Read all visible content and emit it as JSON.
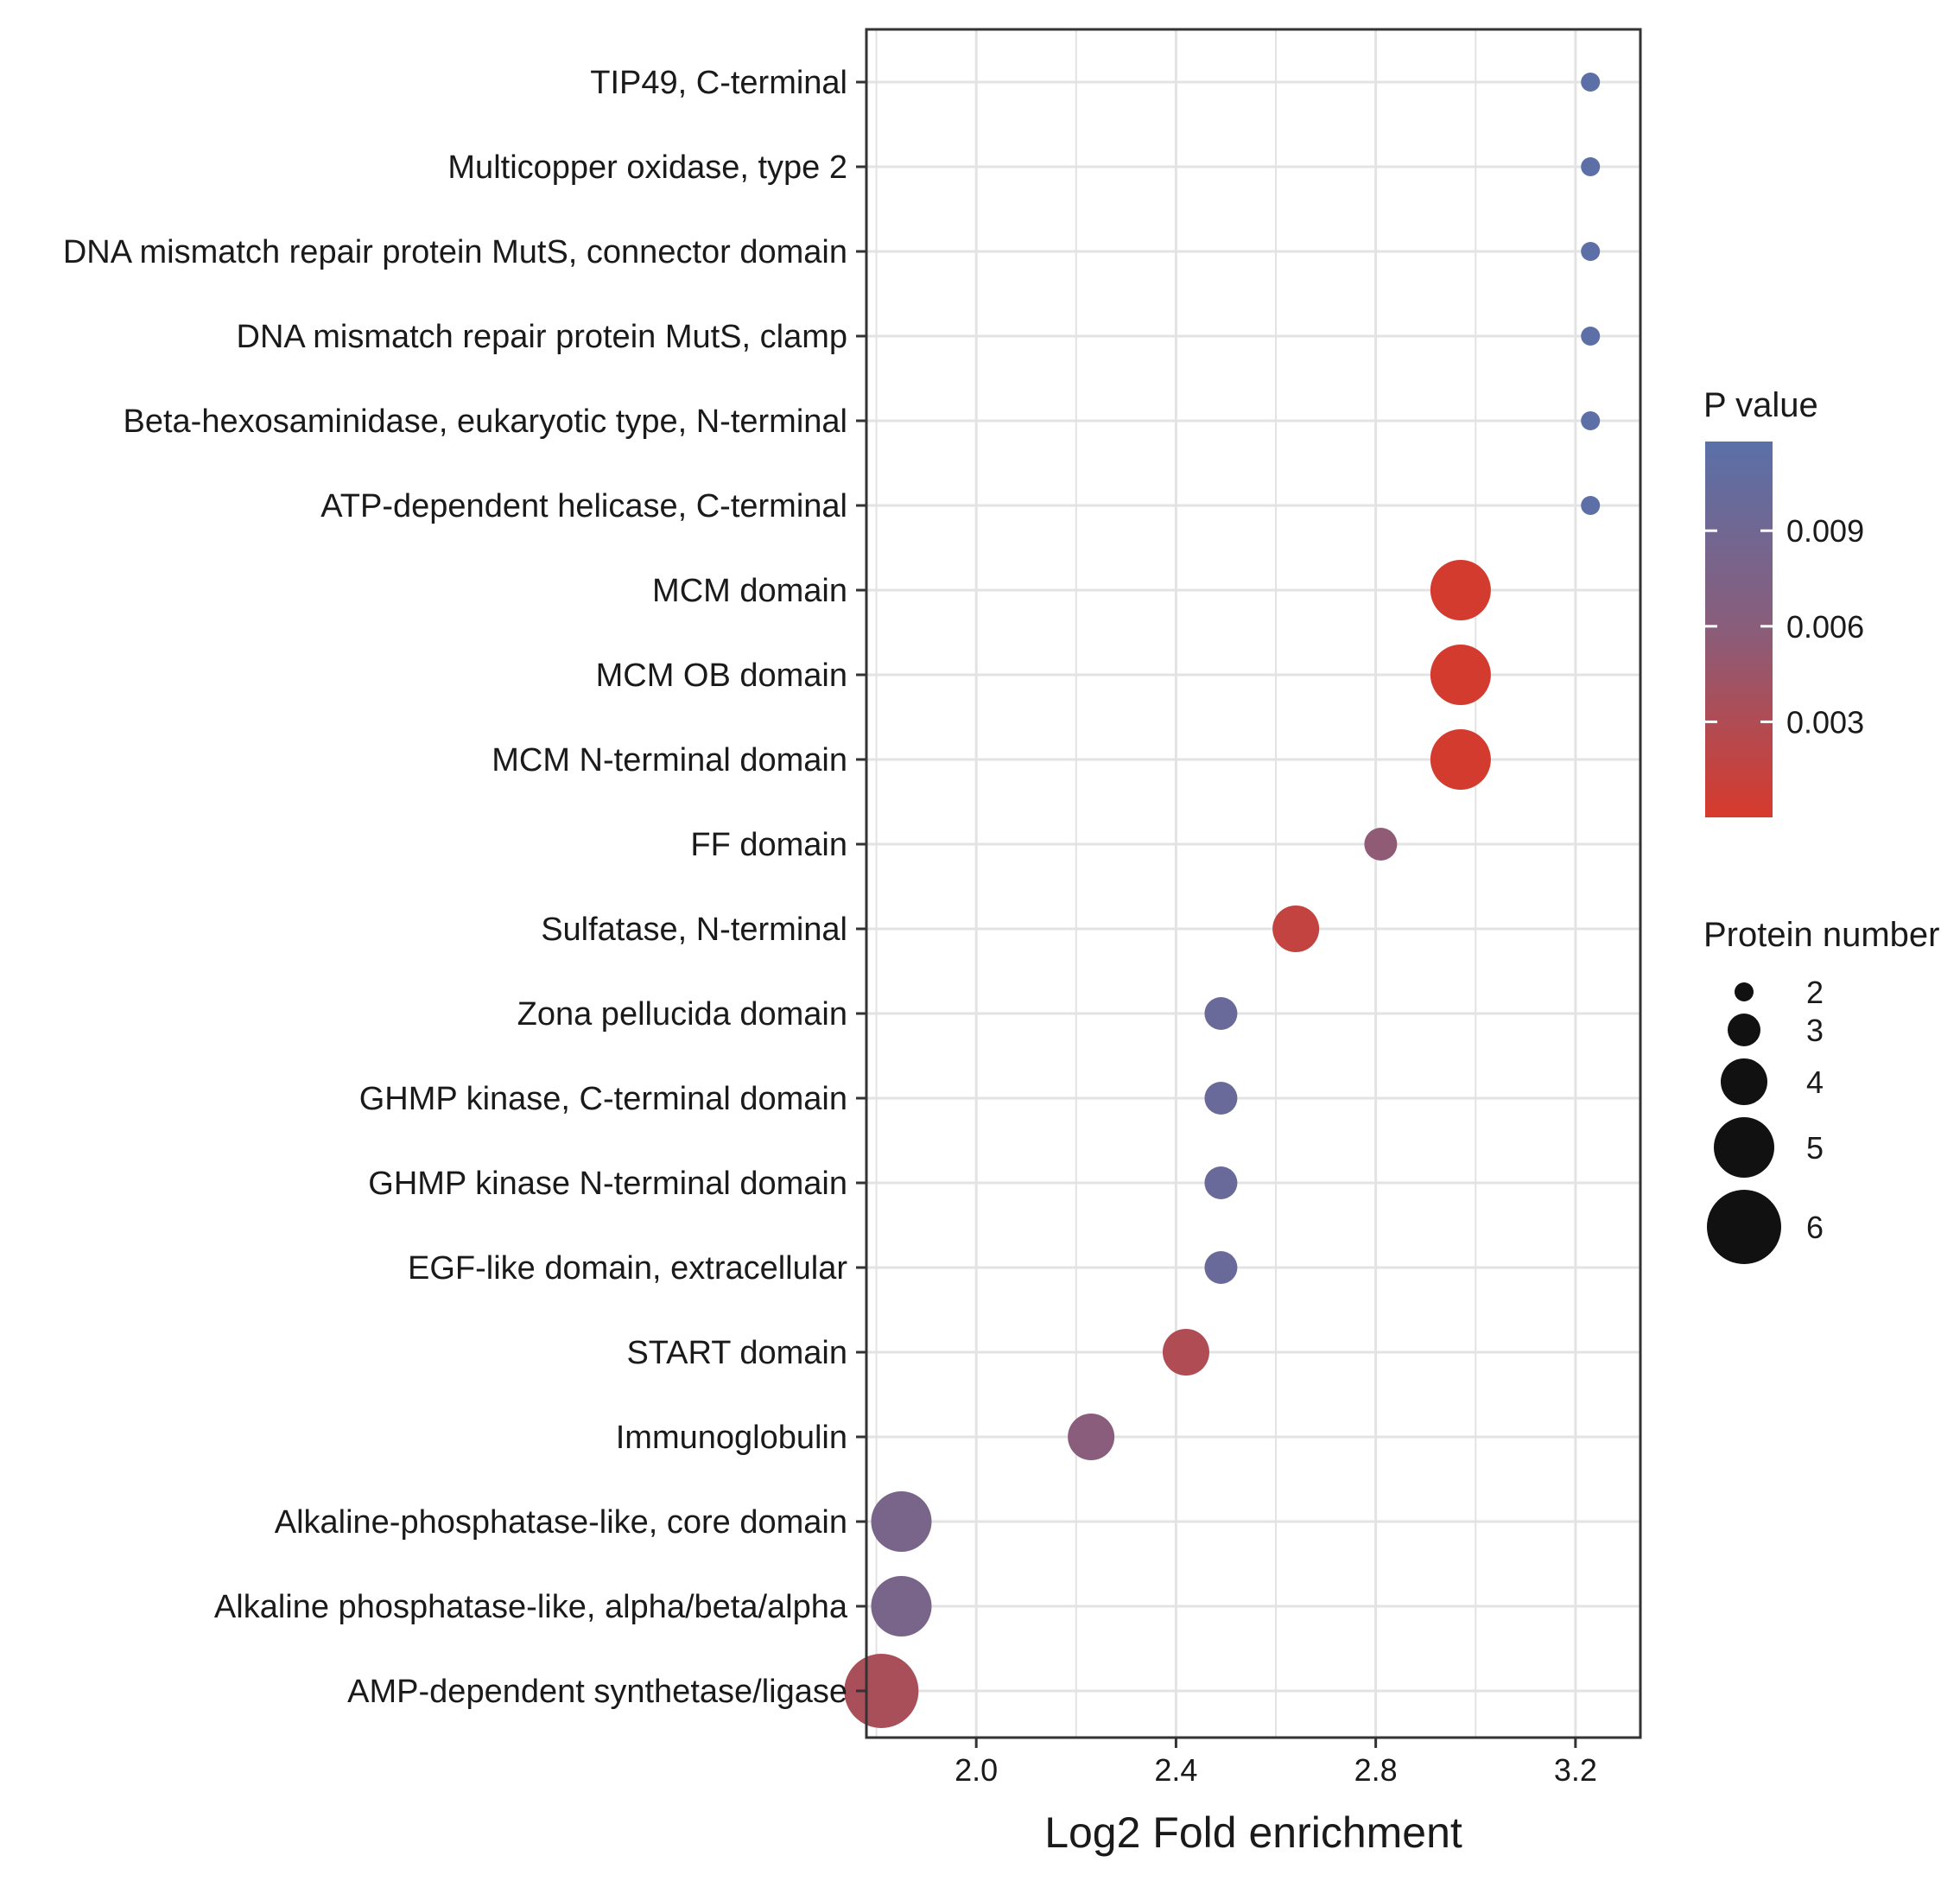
{
  "chart_data": {
    "type": "scatter",
    "title": "",
    "xlabel": "Log2 Fold enrichment",
    "ylabel": "",
    "xlim": [
      1.78,
      3.33
    ],
    "xticks": [
      2.0,
      2.4,
      2.8,
      3.2
    ],
    "xtick_labels": [
      "2.0",
      "2.4",
      "2.8",
      "3.2"
    ],
    "grid": true,
    "categories": [
      "TIP49, C-terminal",
      "Multicopper oxidase, type 2",
      "DNA mismatch repair protein MutS, connector domain",
      "DNA mismatch repair protein MutS, clamp",
      "Beta-hexosaminidase, eukaryotic type, N-terminal",
      "ATP-dependent helicase, C-terminal",
      "MCM domain",
      "MCM OB domain",
      "MCM N-terminal domain",
      "FF domain",
      "Sulfatase, N-terminal",
      "Zona pellucida domain",
      "GHMP kinase, C-terminal domain",
      "GHMP kinase N-terminal domain",
      "EGF-like domain, extracellular",
      "START domain",
      "Immunoglobulin",
      "Alkaline-phosphatase-like, core domain",
      "Alkaline phosphatase-like, alpha/beta/alpha",
      "AMP-dependent synthetase/ligase"
    ],
    "points": [
      {
        "category": "TIP49, C-terminal",
        "x": 3.23,
        "p_value": 0.0115,
        "protein_number": 2
      },
      {
        "category": "Multicopper oxidase, type 2",
        "x": 3.23,
        "p_value": 0.0115,
        "protein_number": 2
      },
      {
        "category": "DNA mismatch repair protein MutS, connector domain",
        "x": 3.23,
        "p_value": 0.0115,
        "protein_number": 2
      },
      {
        "category": "DNA mismatch repair protein MutS, clamp",
        "x": 3.23,
        "p_value": 0.0115,
        "protein_number": 2
      },
      {
        "category": "Beta-hexosaminidase, eukaryotic type, N-terminal",
        "x": 3.23,
        "p_value": 0.0115,
        "protein_number": 2
      },
      {
        "category": "ATP-dependent helicase, C-terminal",
        "x": 3.23,
        "p_value": 0.0115,
        "protein_number": 2
      },
      {
        "category": "MCM domain",
        "x": 2.97,
        "p_value": 0.0002,
        "protein_number": 5
      },
      {
        "category": "MCM OB domain",
        "x": 2.97,
        "p_value": 0.0002,
        "protein_number": 5
      },
      {
        "category": "MCM N-terminal domain",
        "x": 2.97,
        "p_value": 0.0002,
        "protein_number": 5
      },
      {
        "category": "FF domain",
        "x": 2.81,
        "p_value": 0.0055,
        "protein_number": 3
      },
      {
        "category": "Sulfatase, N-terminal",
        "x": 2.64,
        "p_value": 0.0015,
        "protein_number": 4
      },
      {
        "category": "Zona pellucida domain",
        "x": 2.49,
        "p_value": 0.01,
        "protein_number": 3
      },
      {
        "category": "GHMP kinase, C-terminal domain",
        "x": 2.49,
        "p_value": 0.01,
        "protein_number": 3
      },
      {
        "category": "GHMP kinase N-terminal domain",
        "x": 2.49,
        "p_value": 0.01,
        "protein_number": 3
      },
      {
        "category": "EGF-like domain, extracellular",
        "x": 2.49,
        "p_value": 0.01,
        "protein_number": 3
      },
      {
        "category": "START domain",
        "x": 2.42,
        "p_value": 0.003,
        "protein_number": 4
      },
      {
        "category": "Immunoglobulin",
        "x": 2.23,
        "p_value": 0.006,
        "protein_number": 4
      },
      {
        "category": "Alkaline-phosphatase-like, core domain",
        "x": 1.85,
        "p_value": 0.008,
        "protein_number": 5
      },
      {
        "category": "Alkaline phosphatase-like, alpha/beta/alpha",
        "x": 1.85,
        "p_value": 0.008,
        "protein_number": 5
      },
      {
        "category": "AMP-dependent synthetase/ligase",
        "x": 1.81,
        "p_value": 0.0035,
        "protein_number": 6
      }
    ],
    "color_legend": {
      "title": "P value",
      "range": [
        0.0,
        0.0118
      ],
      "ticks": [
        0.009,
        0.006,
        0.003
      ],
      "tick_labels": [
        "0.009",
        "0.006",
        "0.003"
      ],
      "low_color": "#d73a2c",
      "mid_color": "#8a5d7a",
      "high_color": "#5a70a8"
    },
    "size_legend": {
      "title": "Protein number",
      "values": [
        2,
        3,
        4,
        5,
        6
      ],
      "labels": [
        "2",
        "3",
        "4",
        "5",
        "6"
      ],
      "color": "#111111"
    },
    "colors": {
      "grid": "#e3e3e3",
      "panel_border": "#333333",
      "text": "#1a1a1a"
    }
  }
}
